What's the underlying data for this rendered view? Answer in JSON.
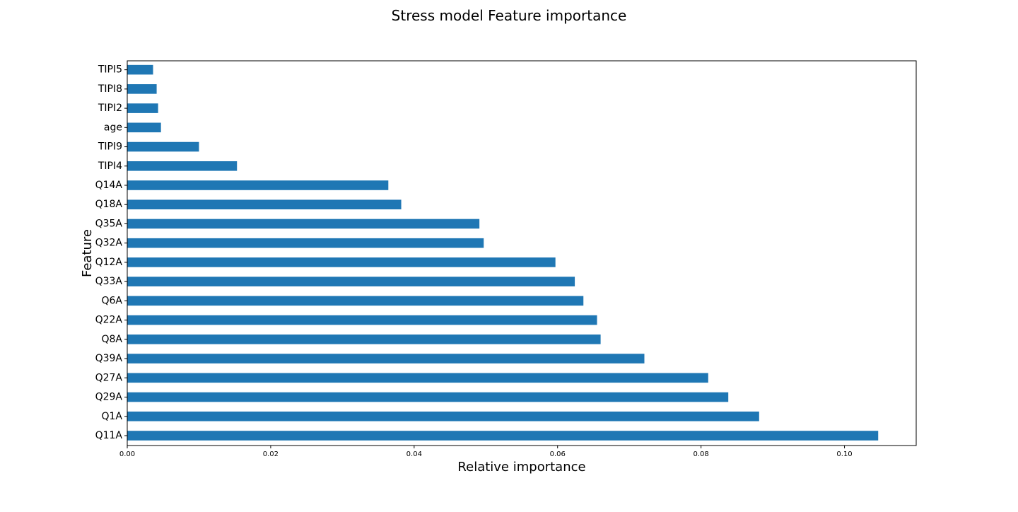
{
  "chart_data": {
    "type": "bar",
    "orientation": "horizontal",
    "title": "Stress model Feature importance",
    "xlabel": "Relative importance",
    "ylabel": "Feature",
    "xlim": [
      0,
      0.11
    ],
    "xticks": [
      0.0,
      0.02,
      0.04,
      0.06,
      0.08,
      0.1
    ],
    "xtick_labels": [
      "0.00",
      "0.02",
      "0.04",
      "0.06",
      "0.08",
      "0.10"
    ],
    "grid": false,
    "bar_color": "#1f77b4",
    "categories": [
      "Q11A",
      "Q1A",
      "Q29A",
      "Q27A",
      "Q39A",
      "Q8A",
      "Q22A",
      "Q6A",
      "Q33A",
      "Q12A",
      "Q32A",
      "Q35A",
      "Q18A",
      "Q14A",
      "TIPI4",
      "TIPI9",
      "age",
      "TIPI2",
      "TIPI8",
      "TIPI5"
    ],
    "values": [
      0.1047,
      0.0881,
      0.0838,
      0.081,
      0.0721,
      0.066,
      0.0655,
      0.0636,
      0.0624,
      0.0597,
      0.0497,
      0.0491,
      0.0382,
      0.0364,
      0.0153,
      0.01,
      0.0047,
      0.0043,
      0.0041,
      0.0036
    ]
  }
}
